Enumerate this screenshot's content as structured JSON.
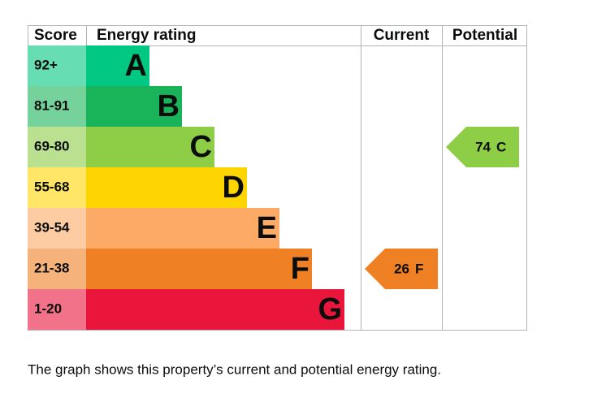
{
  "header": {
    "score": "Score",
    "energy_rating": "Energy rating",
    "current": "Current",
    "potential": "Potential"
  },
  "bands": [
    {
      "score": "92+",
      "letter": "A",
      "color": "#00c781"
    },
    {
      "score": "81-91",
      "letter": "B",
      "color": "#19b459"
    },
    {
      "score": "69-80",
      "letter": "C",
      "color": "#8dce46"
    },
    {
      "score": "55-68",
      "letter": "D",
      "color": "#ffd500"
    },
    {
      "score": "39-54",
      "letter": "E",
      "color": "#fcaa65"
    },
    {
      "score": "21-38",
      "letter": "F",
      "color": "#ef8023"
    },
    {
      "score": "1-20",
      "letter": "G",
      "color": "#e9153b"
    }
  ],
  "current": {
    "score": 26,
    "rating": "F"
  },
  "potential": {
    "score": 74,
    "rating": "C"
  },
  "caption": "The graph shows this property’s current and potential energy rating."
}
